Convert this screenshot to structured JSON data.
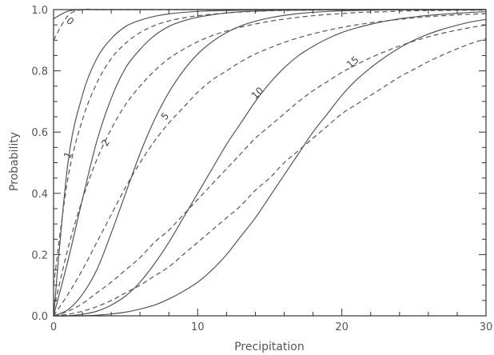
{
  "chart_data": {
    "type": "line",
    "title": "",
    "xlabel": "Precipitation",
    "ylabel": "Probability",
    "xlim": [
      0,
      30
    ],
    "ylim": [
      0,
      1
    ],
    "xticks": [
      "0",
      "10",
      "20",
      "30"
    ],
    "yticks": [
      "0.0",
      "0.2",
      "0.4",
      "0.6",
      "0.8",
      "1.0"
    ],
    "grid": false,
    "colors": {
      "line": "#555555",
      "axis": "#333333",
      "text": "#555555"
    },
    "x": [
      0,
      1,
      2,
      3,
      4,
      5,
      6,
      7,
      8,
      9,
      10,
      11,
      12,
      13,
      14,
      15,
      16,
      17,
      18,
      19,
      20,
      21,
      22,
      23,
      24,
      25,
      26,
      27,
      28,
      29,
      30
    ],
    "series": [
      {
        "name": "0",
        "style": "solid",
        "values": [
          0.97,
          0.995,
          1,
          1,
          1,
          1,
          1,
          1,
          1,
          1,
          1,
          1,
          1,
          1,
          1,
          1,
          1,
          1,
          1,
          1,
          1,
          1,
          1,
          1,
          1,
          1,
          1,
          1,
          1,
          1,
          1
        ]
      },
      {
        "name": "",
        "style": "dashed",
        "values": [
          0.9,
          0.98,
          1,
          1,
          1,
          1,
          1,
          1,
          1,
          1,
          1,
          1,
          1,
          1,
          1,
          1,
          1,
          1,
          1,
          1,
          1,
          1,
          1,
          1,
          1,
          1,
          1,
          1,
          1,
          1,
          1
        ]
      },
      {
        "name": "1",
        "style": "solid",
        "values": [
          0.0,
          0.5,
          0.72,
          0.84,
          0.905,
          0.945,
          0.965,
          0.978,
          0.986,
          0.991,
          0.994,
          0.996,
          0.997,
          0.998,
          0.999,
          1,
          1,
          1,
          1,
          1,
          1,
          1,
          1,
          1,
          1,
          1,
          1,
          1,
          1,
          1,
          1
        ]
      },
      {
        "name": "",
        "style": "dashed",
        "values": [
          0.1,
          0.45,
          0.64,
          0.76,
          0.84,
          0.89,
          0.925,
          0.948,
          0.963,
          0.973,
          0.98,
          0.985,
          0.989,
          0.992,
          0.994,
          0.996,
          0.997,
          0.998,
          0.998,
          0.999,
          0.999,
          0.999,
          1,
          1,
          1,
          1,
          1,
          1,
          1,
          1,
          1
        ]
      },
      {
        "name": "2",
        "style": "solid",
        "values": [
          0.0,
          0.18,
          0.38,
          0.57,
          0.71,
          0.81,
          0.87,
          0.915,
          0.945,
          0.963,
          0.975,
          0.983,
          0.989,
          0.993,
          0.995,
          0.997,
          0.998,
          0.998,
          0.999,
          0.999,
          1,
          1,
          1,
          1,
          1,
          1,
          1,
          1,
          1,
          1,
          1
        ]
      },
      {
        "name": "",
        "style": "dashed",
        "values": [
          0.02,
          0.22,
          0.38,
          0.51,
          0.61,
          0.69,
          0.75,
          0.8,
          0.84,
          0.87,
          0.895,
          0.915,
          0.93,
          0.943,
          0.953,
          0.962,
          0.969,
          0.975,
          0.98,
          0.984,
          0.987,
          0.99,
          0.992,
          0.993,
          0.995,
          0.996,
          0.997,
          0.997,
          0.998,
          0.998,
          0.999
        ]
      },
      {
        "name": "5",
        "style": "solid",
        "values": [
          0.0,
          0.02,
          0.07,
          0.15,
          0.27,
          0.4,
          0.53,
          0.64,
          0.73,
          0.8,
          0.855,
          0.895,
          0.925,
          0.947,
          0.962,
          0.973,
          0.981,
          0.987,
          0.991,
          0.994,
          0.996,
          0.997,
          0.998,
          0.999,
          0.999,
          1,
          1,
          1,
          1,
          1,
          1
        ]
      },
      {
        "name": "",
        "style": "dashed",
        "values": [
          0.0,
          0.07,
          0.15,
          0.24,
          0.33,
          0.42,
          0.5,
          0.57,
          0.63,
          0.68,
          0.73,
          0.77,
          0.8,
          0.83,
          0.855,
          0.875,
          0.893,
          0.908,
          0.921,
          0.932,
          0.942,
          0.95,
          0.957,
          0.963,
          0.968,
          0.973,
          0.977,
          0.98,
          0.983,
          0.985,
          0.987
        ]
      },
      {
        "name": "10",
        "style": "solid",
        "values": [
          0.0,
          0.0,
          0.005,
          0.015,
          0.035,
          0.065,
          0.11,
          0.17,
          0.24,
          0.32,
          0.4,
          0.48,
          0.56,
          0.63,
          0.7,
          0.76,
          0.81,
          0.85,
          0.88,
          0.905,
          0.925,
          0.94,
          0.952,
          0.962,
          0.97,
          0.976,
          0.981,
          0.985,
          0.988,
          0.991,
          0.993
        ]
      },
      {
        "name": "",
        "style": "dashed",
        "values": [
          0.0,
          0.015,
          0.04,
          0.075,
          0.11,
          0.15,
          0.19,
          0.24,
          0.28,
          0.33,
          0.38,
          0.43,
          0.48,
          0.53,
          0.58,
          0.62,
          0.66,
          0.7,
          0.735,
          0.765,
          0.795,
          0.82,
          0.843,
          0.863,
          0.881,
          0.897,
          0.911,
          0.923,
          0.933,
          0.942,
          0.95
        ]
      },
      {
        "name": "15",
        "style": "solid",
        "values": [
          0.0,
          0.0,
          0.0,
          0.002,
          0.006,
          0.012,
          0.022,
          0.035,
          0.055,
          0.08,
          0.11,
          0.15,
          0.2,
          0.26,
          0.32,
          0.39,
          0.46,
          0.53,
          0.6,
          0.66,
          0.72,
          0.77,
          0.81,
          0.845,
          0.875,
          0.9,
          0.92,
          0.936,
          0.949,
          0.96,
          0.968
        ]
      },
      {
        "name": "",
        "style": "dashed",
        "values": [
          0.0,
          0.005,
          0.015,
          0.03,
          0.05,
          0.075,
          0.1,
          0.13,
          0.16,
          0.2,
          0.24,
          0.28,
          0.32,
          0.36,
          0.41,
          0.45,
          0.5,
          0.54,
          0.58,
          0.62,
          0.66,
          0.69,
          0.72,
          0.75,
          0.78,
          0.805,
          0.83,
          0.852,
          0.872,
          0.89,
          0.905
        ]
      }
    ],
    "annotations": [
      {
        "text": "0",
        "x": 1.0,
        "y": 0.955,
        "rotate": 45
      },
      {
        "text": "1",
        "x": 1.2,
        "y": 0.52,
        "rotate": -65
      },
      {
        "text": "2",
        "x": 3.8,
        "y": 0.56,
        "rotate": -60
      },
      {
        "text": "5",
        "x": 7.9,
        "y": 0.645,
        "rotate": -50
      },
      {
        "text": "10",
        "x": 14.3,
        "y": 0.72,
        "rotate": -45
      },
      {
        "text": "15",
        "x": 20.9,
        "y": 0.82,
        "rotate": -40
      }
    ]
  }
}
